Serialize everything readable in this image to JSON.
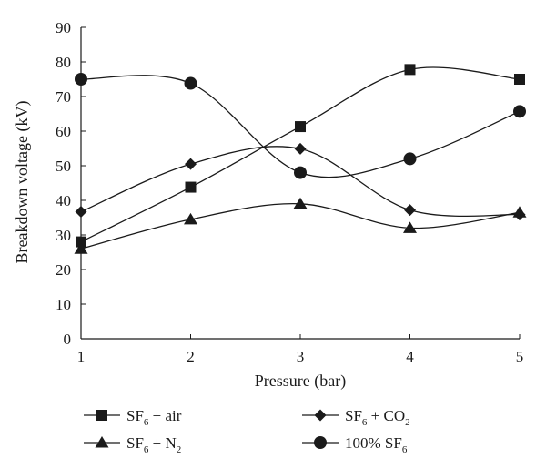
{
  "chart_data": {
    "type": "line",
    "title": "",
    "xlabel": "Pressure (bar)",
    "ylabel": "Breakdown voltage (kV)",
    "x": [
      1,
      2,
      3,
      4,
      5
    ],
    "xlim": [
      1,
      5
    ],
    "ylim": [
      0,
      90
    ],
    "xticks": [
      "1",
      "2",
      "3",
      "4",
      "5"
    ],
    "yticks": [
      "0",
      "10",
      "20",
      "30",
      "40",
      "50",
      "60",
      "70",
      "80",
      "90"
    ],
    "grid": false,
    "legend_position": "bottom",
    "series": [
      {
        "name": "SF6 + air",
        "label_main": "SF",
        "label_sub": "6",
        "label_rest": " + air",
        "marker": "square",
        "color": "#1a1a1a",
        "values": [
          28,
          43.8,
          61.3,
          77.8,
          75
        ]
      },
      {
        "name": "SF6 + CO2",
        "label_main": "SF",
        "label_sub": "6",
        "label_rest": " + CO",
        "label_sub2": "2",
        "marker": "diamond",
        "color": "#1a1a1a",
        "values": [
          36.7,
          50.5,
          54.9,
          37.2,
          35.9
        ]
      },
      {
        "name": "SF6 + N2",
        "label_main": "SF",
        "label_sub": "6",
        "label_rest": " + N",
        "label_sub2": "2",
        "marker": "triangle",
        "color": "#1a1a1a",
        "values": [
          26,
          34.5,
          39,
          32,
          36.5
        ]
      },
      {
        "name": "100% SF6",
        "label_main": "100% SF",
        "label_sub": "6",
        "label_rest": "",
        "marker": "circle",
        "color": "#1a1a1a",
        "values": [
          75,
          73.8,
          48,
          52,
          65.7
        ]
      }
    ]
  }
}
